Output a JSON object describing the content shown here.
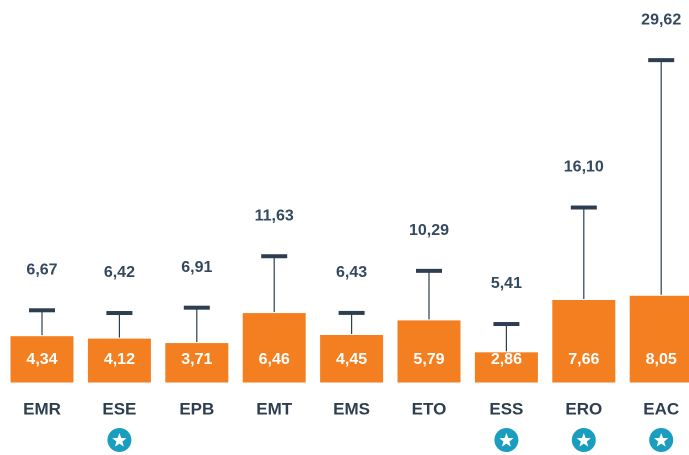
{
  "chart_data": {
    "type": "bar",
    "categories": [
      "EMR",
      "ESE",
      "EPB",
      "EMT",
      "EMS",
      "ETO",
      "ESS",
      "ERO",
      "EAC"
    ],
    "values": [
      4.34,
      4.12,
      3.71,
      6.46,
      4.45,
      5.79,
      2.86,
      7.66,
      8.05
    ],
    "value_labels": [
      "4,34",
      "4,12",
      "3,71",
      "6,46",
      "4,45",
      "5,79",
      "2,86",
      "7,66",
      "8,05"
    ],
    "upper": [
      6.67,
      6.42,
      6.91,
      11.63,
      6.43,
      10.29,
      5.41,
      16.1,
      29.62
    ],
    "upper_labels": [
      "6,67",
      "6,42",
      "6,91",
      "11,63",
      "6,43",
      "10,29",
      "5,41",
      "16,10",
      "29,62"
    ],
    "starred": [
      false,
      true,
      false,
      false,
      false,
      false,
      true,
      true,
      true
    ],
    "color": "#f47f20",
    "cap_color": "#2c3e50",
    "star_color": "#1b9dc0",
    "ylim": [
      0,
      30
    ]
  }
}
